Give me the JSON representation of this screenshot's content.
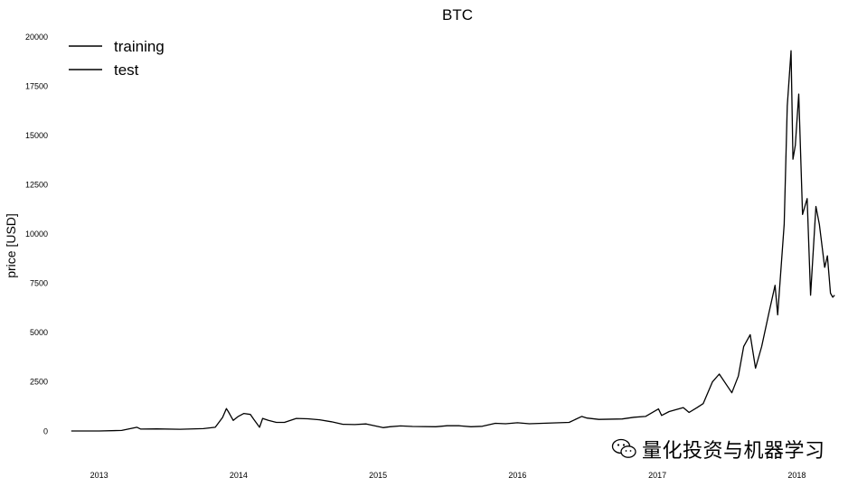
{
  "chart_data": {
    "type": "line",
    "title": "BTC",
    "xlabel": "",
    "ylabel": "price [USD]",
    "xlim": [
      "2012-09-15",
      "2018-05-15"
    ],
    "ylim": [
      -1500,
      20500
    ],
    "y_ticks": [
      "20000",
      "17500",
      "15000",
      "12500",
      "10000",
      "7500",
      "5000",
      "2500",
      "0"
    ],
    "x_ticks": [
      "2013",
      "2014",
      "2015",
      "2016",
      "2017",
      "2018"
    ],
    "grid": false,
    "legend": {
      "placement": "top-left",
      "entries": [
        "training",
        "test"
      ]
    },
    "series": [
      {
        "name": "training",
        "color": "#000000",
        "points": [
          [
            "2012-10-20",
            12
          ],
          [
            "2013-01-01",
            13
          ],
          [
            "2013-03-01",
            40
          ],
          [
            "2013-04-10",
            200
          ],
          [
            "2013-04-20",
            110
          ],
          [
            "2013-06-01",
            120
          ],
          [
            "2013-08-01",
            100
          ],
          [
            "2013-10-01",
            130
          ],
          [
            "2013-11-01",
            200
          ],
          [
            "2013-11-20",
            700
          ],
          [
            "2013-11-30",
            1150
          ],
          [
            "2013-12-05",
            1000
          ],
          [
            "2013-12-18",
            550
          ],
          [
            "2013-12-31",
            750
          ],
          [
            "2014-01-15",
            900
          ],
          [
            "2014-02-01",
            850
          ],
          [
            "2014-02-10",
            600
          ],
          [
            "2014-02-25",
            200
          ],
          [
            "2014-03-05",
            650
          ],
          [
            "2014-03-20",
            550
          ],
          [
            "2014-04-10",
            450
          ],
          [
            "2014-05-01",
            450
          ],
          [
            "2014-06-01",
            650
          ],
          [
            "2014-07-01",
            630
          ],
          [
            "2014-08-01",
            580
          ],
          [
            "2014-09-01",
            480
          ],
          [
            "2014-10-01",
            350
          ],
          [
            "2014-11-01",
            340
          ],
          [
            "2014-12-01",
            370
          ],
          [
            "2015-01-14",
            180
          ],
          [
            "2015-02-01",
            230
          ],
          [
            "2015-03-01",
            270
          ],
          [
            "2015-04-01",
            240
          ],
          [
            "2015-06-01",
            230
          ],
          [
            "2015-07-01",
            280
          ],
          [
            "2015-08-01",
            280
          ],
          [
            "2015-09-01",
            230
          ],
          [
            "2015-10-01",
            250
          ],
          [
            "2015-11-04",
            400
          ],
          [
            "2015-12-01",
            380
          ],
          [
            "2016-01-01",
            430
          ],
          [
            "2016-02-01",
            380
          ],
          [
            "2016-04-01",
            420
          ],
          [
            "2016-05-15",
            450
          ],
          [
            "2016-06-17",
            750
          ],
          [
            "2016-07-01",
            670
          ],
          [
            "2016-08-01",
            600
          ],
          [
            "2016-10-01",
            620
          ],
          [
            "2016-11-01",
            710
          ],
          [
            "2016-12-01",
            750
          ],
          [
            "2017-01-04",
            1130
          ],
          [
            "2017-01-12",
            800
          ],
          [
            "2017-02-01",
            1000
          ],
          [
            "2017-03-10",
            1200
          ],
          [
            "2017-03-25",
            950
          ],
          [
            "2017-04-15",
            1200
          ],
          [
            "2017-05-01",
            1400
          ],
          [
            "2017-05-25",
            2500
          ],
          [
            "2017-06-12",
            2900
          ],
          [
            "2017-07-15",
            1950
          ],
          [
            "2017-08-01",
            2800
          ],
          [
            "2017-08-15",
            4300
          ],
          [
            "2017-09-01",
            4900
          ],
          [
            "2017-09-15",
            3200
          ],
          [
            "2017-10-01",
            4300
          ],
          [
            "2017-10-20",
            6000
          ],
          [
            "2017-11-05",
            7400
          ],
          [
            "2017-11-12",
            5900
          ],
          [
            "2017-11-29",
            10500
          ],
          [
            "2017-12-07",
            16500
          ],
          [
            "2017-12-17",
            19300
          ],
          [
            "2017-12-22",
            13800
          ],
          [
            "2017-12-28",
            14500
          ],
          [
            "2018-01-06",
            17100
          ],
          [
            "2018-01-16",
            11000
          ],
          [
            "2018-01-28",
            11800
          ],
          [
            "2018-02-06",
            6900
          ],
          [
            "2018-02-20",
            11400
          ],
          [
            "2018-03-01",
            10500
          ],
          [
            "2018-03-15",
            8300
          ]
        ]
      },
      {
        "name": "test",
        "color": "#000000",
        "points": [
          [
            "2018-03-15",
            8300
          ],
          [
            "2018-03-22",
            8900
          ],
          [
            "2018-03-30",
            7000
          ],
          [
            "2018-04-05",
            6800
          ],
          [
            "2018-04-10",
            6900
          ]
        ]
      }
    ]
  },
  "watermark": {
    "text": "量化投资与机器学习",
    "icon": "wechat-icon"
  }
}
